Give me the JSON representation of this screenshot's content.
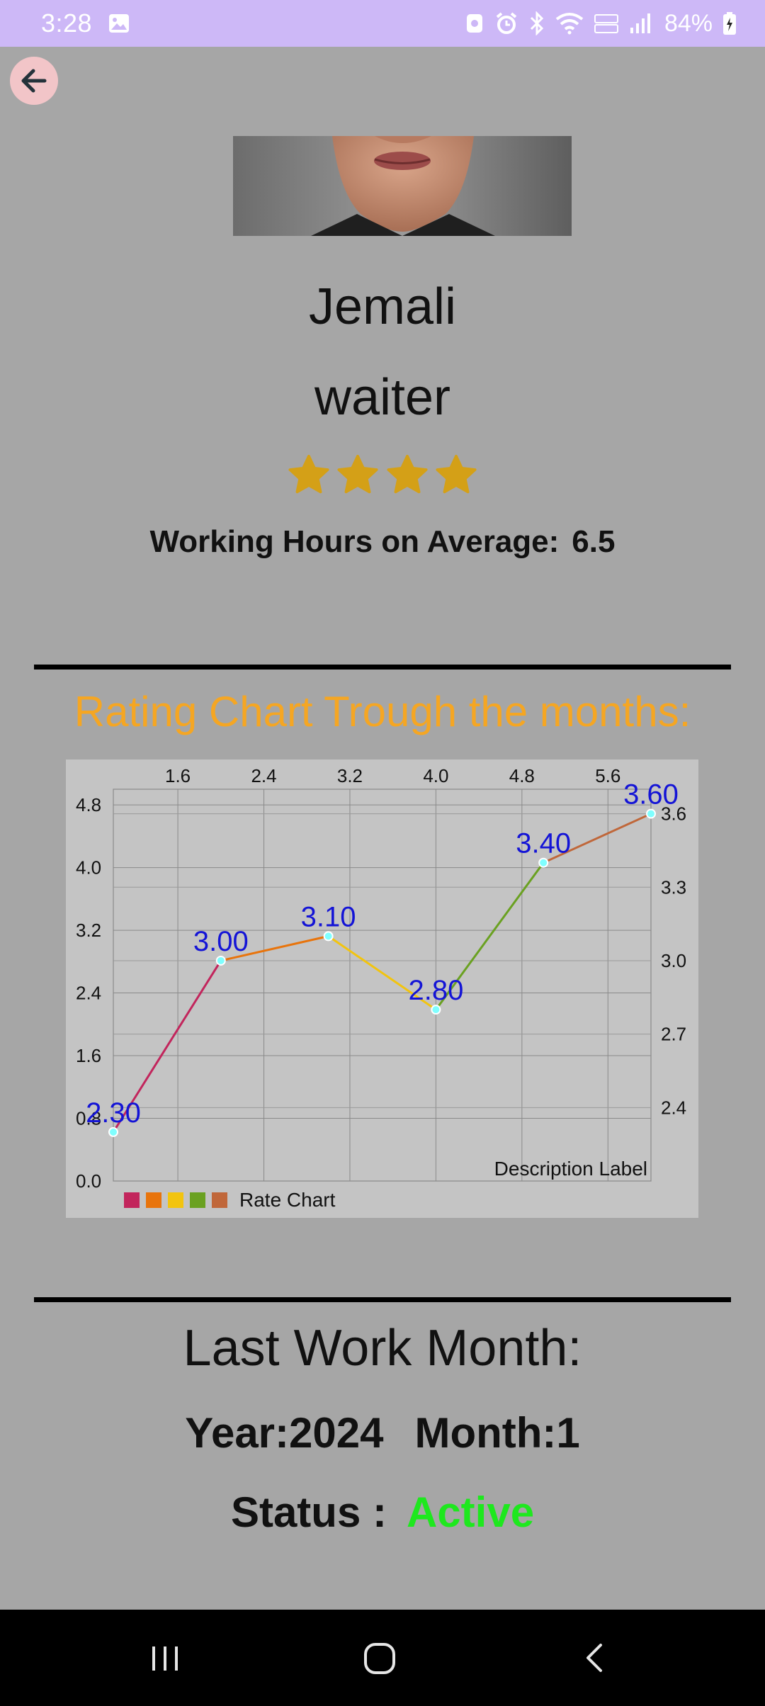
{
  "status_bar": {
    "time": "3:28",
    "battery": "84%",
    "icons": [
      "gallery-icon",
      "assistant-icon",
      "alarm-icon",
      "bluetooth-icon",
      "wifi-icon",
      "volte-icon",
      "signal-icon",
      "battery-charging-icon"
    ]
  },
  "profile": {
    "name": "Jemali",
    "role": "waiter",
    "rating_stars": 4,
    "star_color": "#d4a017",
    "hours_label": "Working Hours on Average:",
    "hours_value": "6.5"
  },
  "chart_section": {
    "title": "Rating Chart Trough the months:",
    "title_color": "#f5a623"
  },
  "chart_data": {
    "type": "line",
    "x": [
      1.0,
      2.0,
      3.0,
      4.0,
      5.0,
      6.0
    ],
    "values": [
      2.3,
      3.0,
      3.1,
      2.8,
      3.4,
      3.6
    ],
    "value_labels": [
      "2.30",
      "3.00",
      "3.10",
      "2.80",
      "3.40",
      "3.60"
    ],
    "segment_colors": [
      "#c2255c",
      "#e8740c",
      "#f2c40f",
      "#6aa121",
      "#c0673a"
    ],
    "series": [
      {
        "name": "Rate Chart",
        "values": [
          2.3,
          3.0,
          3.1,
          2.8,
          3.4,
          3.6
        ]
      }
    ],
    "x_top_ticks": [
      "1.6",
      "2.4",
      "3.2",
      "4.0",
      "4.8",
      "5.6"
    ],
    "x_top_tick_values": [
      1.6,
      2.4,
      3.2,
      4.0,
      4.8,
      5.6
    ],
    "y_left_ticks": [
      "4.8",
      "4.0",
      "3.2",
      "2.4",
      "1.6",
      "0.8",
      "0.0"
    ],
    "y_left_tick_values": [
      4.8,
      4.0,
      3.2,
      2.4,
      1.6,
      0.8,
      0.0
    ],
    "y_right_ticks": [
      "3.6",
      "3.3",
      "3.0",
      "2.7",
      "2.4"
    ],
    "y_right_tick_values": [
      3.6,
      3.3,
      3.0,
      2.7,
      2.4
    ],
    "xlim": [
      1.0,
      6.0
    ],
    "ylim": [
      0.0,
      5.0
    ],
    "ylim_right": [
      2.1,
      3.7
    ],
    "description": "Description Label",
    "legend_placement": "bottom-left",
    "grid": true,
    "value_label_color": "#1414d6",
    "point_color": "#7fffff"
  },
  "last_work": {
    "title": "Last Work Month:",
    "year_label": "Year:2024",
    "month_label": "Month:1",
    "status_label": "Status :",
    "status_value": "Active",
    "status_color": "#1ee81e"
  },
  "nav_bar": {
    "buttons": [
      "recent-apps-icon",
      "home-icon",
      "back-icon"
    ]
  }
}
